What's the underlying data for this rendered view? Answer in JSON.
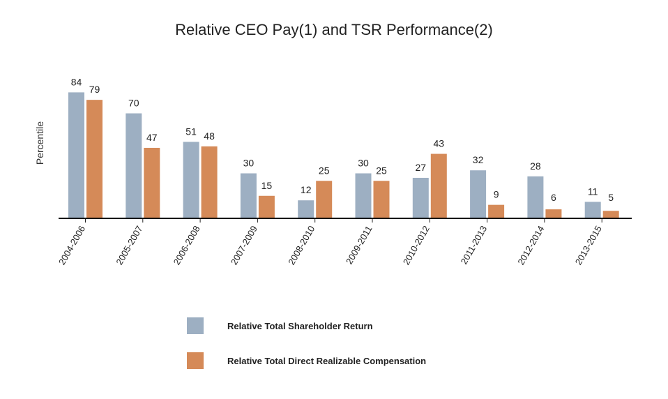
{
  "chart_data": {
    "type": "bar",
    "title": "Relative CEO Pay(1) and TSR Performance(2)",
    "xlabel": "",
    "ylabel": "Percentile",
    "ylim": [
      0,
      100
    ],
    "grid": false,
    "legend_position": "bottom",
    "categories": [
      "2004-2006",
      "2005-2007",
      "2006-2008",
      "2007-2009",
      "2008-2010",
      "2009-2011",
      "2010-2012",
      "2011-2013",
      "2012-2014",
      "2013-2015"
    ],
    "series": [
      {
        "name": "Relative Total Shareholder Return",
        "color": "#9dafc2",
        "values": [
          84,
          70,
          51,
          30,
          12,
          30,
          27,
          32,
          28,
          11
        ]
      },
      {
        "name": "Relative Total Direct Realizable Compensation",
        "color": "#d58a58",
        "values": [
          79,
          47,
          48,
          15,
          25,
          25,
          43,
          9,
          6,
          5
        ]
      }
    ]
  }
}
